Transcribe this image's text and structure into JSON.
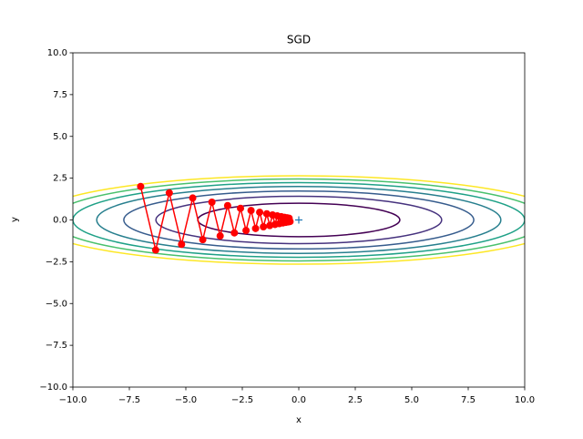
{
  "chart_data": {
    "type": "contour-path",
    "title": "SGD",
    "x_label": "x",
    "y_label": "y",
    "xlim": [
      -10,
      10
    ],
    "ylim": [
      -10,
      10
    ],
    "xticks": [
      {
        "value": -10,
        "label": "−10.0"
      },
      {
        "value": -7.5,
        "label": "−7.5"
      },
      {
        "value": -5,
        "label": "−5.0"
      },
      {
        "value": -2.5,
        "label": "−2.5"
      },
      {
        "value": 0,
        "label": "0.0"
      },
      {
        "value": 2.5,
        "label": "2.5"
      },
      {
        "value": 5,
        "label": "5.0"
      },
      {
        "value": 7.5,
        "label": "7.5"
      },
      {
        "value": 10,
        "label": "10.0"
      }
    ],
    "yticks": [
      {
        "value": -10,
        "label": "−10.0"
      },
      {
        "value": -7.5,
        "label": "−7.5"
      },
      {
        "value": -5,
        "label": "−5.0"
      },
      {
        "value": -2.5,
        "label": "−2.5"
      },
      {
        "value": 0,
        "label": "0.0"
      },
      {
        "value": 2.5,
        "label": "2.5"
      },
      {
        "value": 5,
        "label": "5.0"
      },
      {
        "value": 7.5,
        "label": "7.5"
      },
      {
        "value": 10,
        "label": "10.0"
      }
    ],
    "contour_levels": [
      1,
      2,
      3,
      4,
      5,
      6,
      7
    ],
    "contour_colors": [
      "#440154",
      "#46327e",
      "#365c8d",
      "#277f8e",
      "#1fa187",
      "#4ac16d",
      "#fde725"
    ],
    "minimum": {
      "x": 0,
      "y": 0,
      "color": "#1f77b4"
    },
    "series": [
      {
        "color": "#ff0000",
        "x": [
          -7,
          -6.335,
          -5.733,
          -5.189,
          -4.696,
          -4.25,
          -3.846,
          -3.48,
          -3.15,
          -2.851,
          -2.58,
          -2.335,
          -2.113,
          -1.912,
          -1.731,
          -1.566,
          -1.417,
          -1.283,
          -1.161,
          -1.051,
          -0.951,
          -0.86,
          -0.779,
          -0.705,
          -0.638,
          -0.577,
          -0.522,
          -0.473,
          -0.428,
          -0.387
        ],
        "values": [
          2,
          -1.8,
          1.62,
          -1.458,
          1.312,
          -1.181,
          1.063,
          -0.957,
          0.861,
          -0.775,
          0.697,
          -0.628,
          0.565,
          -0.508,
          0.458,
          -0.412,
          0.371,
          -0.334,
          0.3,
          -0.27,
          0.243,
          -0.219,
          0.197,
          -0.177,
          0.159,
          -0.144,
          0.129,
          -0.116,
          0.105,
          -0.094
        ]
      }
    ]
  }
}
